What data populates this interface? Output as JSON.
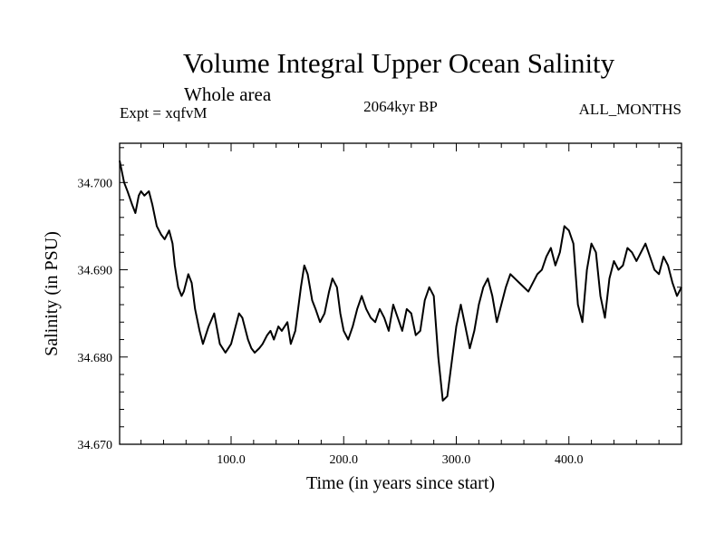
{
  "chart_data": {
    "type": "line",
    "title": "Volume Integral Upper Ocean Salinity",
    "subtitle": "Whole area",
    "left_label": "Expt = xqfvM",
    "center_label": "2064kyr BP",
    "right_label": "ALL_MONTHS",
    "xlabel": "Time (in years since start)",
    "ylabel": "Salinity (in PSU)",
    "xlim": [
      1,
      500
    ],
    "ylim": [
      34.67,
      34.7045
    ],
    "x_ticks": [
      100,
      200,
      300,
      400
    ],
    "x_tick_labels": [
      "100.0",
      "200.0",
      "300.0",
      "400.0"
    ],
    "y_ticks": [
      34.67,
      34.68,
      34.69,
      34.7
    ],
    "y_tick_labels": [
      "34.670",
      "34.680",
      "34.690",
      "34.700"
    ],
    "grid": false,
    "series": [
      {
        "name": "Salinity",
        "x": [
          1,
          5,
          8,
          12,
          15,
          18,
          20,
          23,
          27,
          30,
          34,
          38,
          41,
          45,
          48,
          50,
          53,
          56,
          58,
          62,
          65,
          68,
          72,
          75,
          80,
          85,
          90,
          95,
          100,
          103,
          107,
          110,
          115,
          118,
          121,
          125,
          128,
          132,
          135,
          138,
          142,
          145,
          150,
          153,
          157,
          162,
          165,
          168,
          172,
          175,
          179,
          183,
          187,
          190,
          194,
          197,
          200,
          204,
          208,
          212,
          216,
          220,
          224,
          228,
          232,
          236,
          240,
          244,
          248,
          252,
          256,
          260,
          264,
          268,
          272,
          276,
          280,
          284,
          288,
          292,
          296,
          300,
          304,
          308,
          312,
          316,
          320,
          324,
          328,
          332,
          336,
          340,
          344,
          348,
          352,
          356,
          360,
          364,
          368,
          372,
          376,
          380,
          384,
          388,
          392,
          396,
          400,
          404,
          408,
          412,
          416,
          420,
          424,
          428,
          432,
          436,
          440,
          444,
          448,
          452,
          456,
          460,
          464,
          468,
          472,
          476,
          480,
          484,
          488,
          492,
          496,
          500
        ],
        "values": [
          34.7025,
          34.7,
          34.699,
          34.6975,
          34.6965,
          34.6985,
          34.699,
          34.6985,
          34.699,
          34.6975,
          34.695,
          34.694,
          34.6935,
          34.6945,
          34.693,
          34.6905,
          34.688,
          34.687,
          34.6875,
          34.6895,
          34.6885,
          34.6855,
          34.683,
          34.6815,
          34.6835,
          34.685,
          34.6815,
          34.6805,
          34.6815,
          34.683,
          34.685,
          34.6845,
          34.682,
          34.681,
          34.6805,
          34.681,
          34.6815,
          34.6825,
          34.683,
          34.682,
          34.6835,
          34.683,
          34.684,
          34.6815,
          34.683,
          34.688,
          34.6905,
          34.6895,
          34.6865,
          34.6855,
          34.684,
          34.685,
          34.6875,
          34.689,
          34.688,
          34.685,
          34.683,
          34.682,
          34.6835,
          34.6855,
          34.687,
          34.6855,
          34.6845,
          34.684,
          34.6855,
          34.6845,
          34.683,
          34.686,
          34.6845,
          34.683,
          34.6855,
          34.685,
          34.6825,
          34.683,
          34.6865,
          34.688,
          34.687,
          34.68,
          34.675,
          34.6755,
          34.6795,
          34.6835,
          34.686,
          34.6835,
          34.681,
          34.683,
          34.686,
          34.688,
          34.689,
          34.687,
          34.684,
          34.686,
          34.688,
          34.6895,
          34.689,
          34.6885,
          34.688,
          34.6875,
          34.6885,
          34.6895,
          34.69,
          34.6915,
          34.6925,
          34.6905,
          34.692,
          34.695,
          34.6945,
          34.693,
          34.686,
          34.684,
          34.69,
          34.693,
          34.692,
          34.687,
          34.6845,
          34.689,
          34.691,
          34.69,
          34.6905,
          34.6925,
          34.692,
          34.691,
          34.692,
          34.693,
          34.6915,
          34.69,
          34.6895,
          34.6915,
          34.6905,
          34.6885,
          34.687,
          34.688
        ]
      }
    ]
  }
}
